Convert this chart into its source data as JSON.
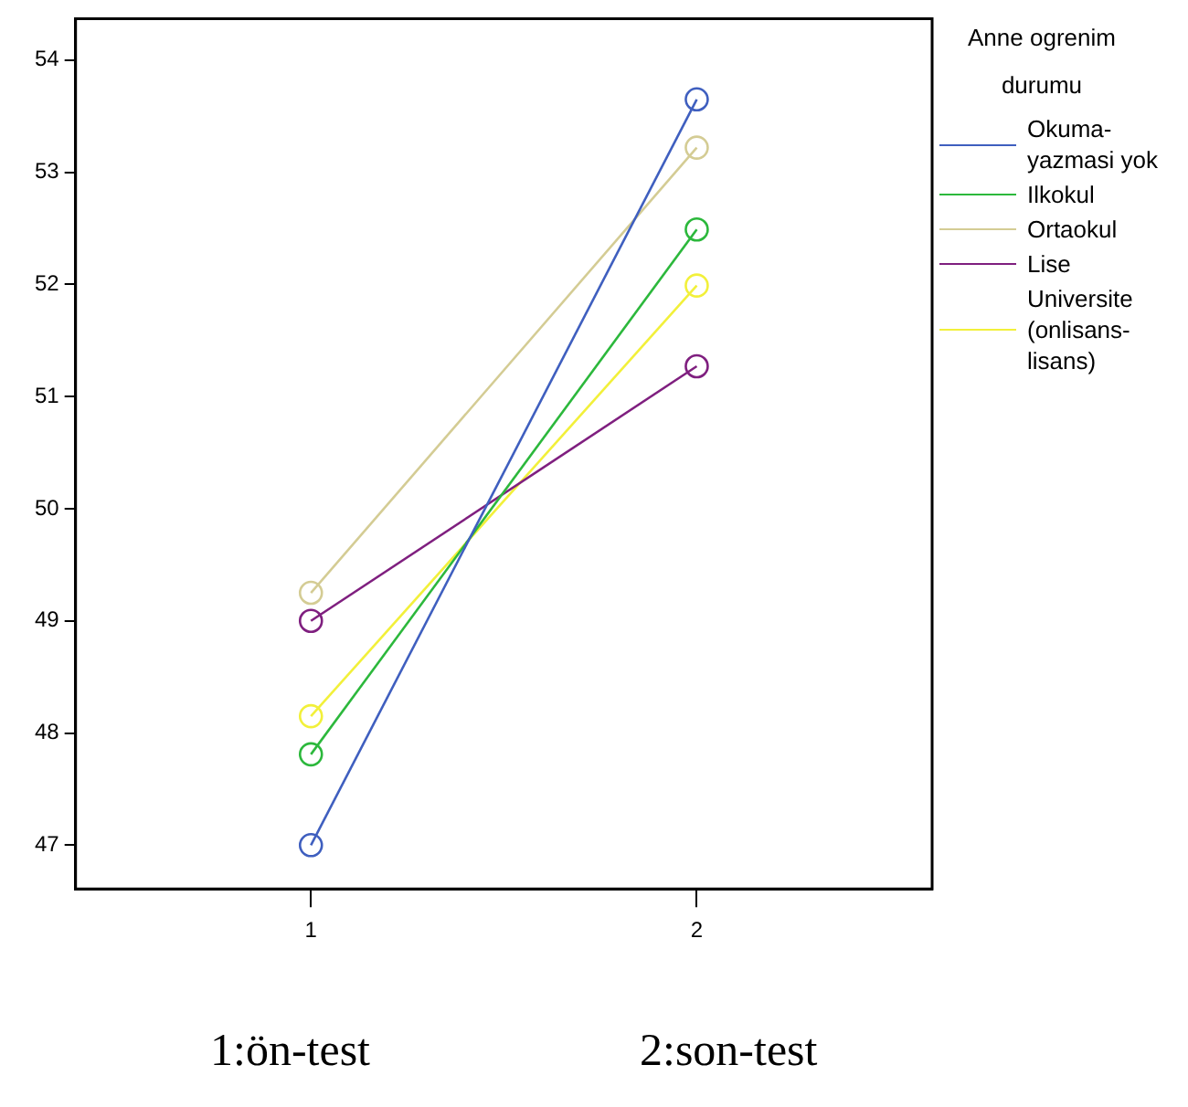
{
  "chart_data": {
    "type": "line",
    "legend_title": "Anne ogrenim durumu",
    "x": [
      1,
      2
    ],
    "xlim": [
      0.39,
      2.61
    ],
    "xticks": [
      1,
      2
    ],
    "ylim": [
      46.61,
      54.37
    ],
    "yticks": [
      47,
      48,
      49,
      50,
      51,
      52,
      53,
      54
    ],
    "grid": false,
    "legend": "right",
    "marker": "circle",
    "line_style": "solid",
    "series": [
      {
        "name": "Okuma-yazmasi yok",
        "color": "#3f5fbf",
        "values": [
          47.0,
          53.65
        ]
      },
      {
        "name": "Ilkokul",
        "color": "#2cb83c",
        "values": [
          47.81,
          52.49
        ]
      },
      {
        "name": "Ortaokul",
        "color": "#d4cc94",
        "values": [
          49.25,
          53.22
        ]
      },
      {
        "name": "Lise",
        "color": "#7f1f7f",
        "values": [
          49.0,
          51.27
        ]
      },
      {
        "name": "Universite (onlisans-lisans)",
        "color": "#f2f03a",
        "values": [
          48.15,
          51.99
        ]
      }
    ],
    "annotations": [
      "1:ön-test",
      "2:son-test"
    ]
  }
}
